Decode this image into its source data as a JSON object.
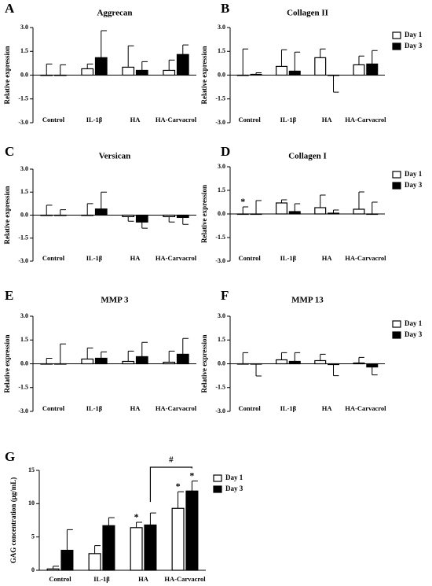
{
  "chart_data": [
    {
      "type": "bar",
      "label": "A",
      "title": "Aggrecan",
      "ylabel": "Relative expression",
      "categories": [
        "Control",
        "IL-1β",
        "HA",
        "HA-Carvacrol"
      ],
      "series": [
        {
          "name": "Day 1",
          "color": "#ffffff",
          "values": [
            0,
            0.4,
            0.5,
            0.3
          ],
          "errors": [
            0.7,
            0.3,
            1.35,
            0.65
          ]
        },
        {
          "name": "Day 3",
          "color": "#000000",
          "values": [
            0,
            1.1,
            0.3,
            1.3
          ],
          "errors": [
            0.65,
            1.7,
            0.55,
            0.6
          ]
        }
      ],
      "ylim": [
        -3,
        3
      ],
      "yticks": [
        {
          "value": 3,
          "label": "3.0"
        },
        {
          "value": 1.5,
          "label": "1.5"
        },
        {
          "value": 0,
          "label": "0.0"
        },
        {
          "value": -1.5,
          "label": "-1.5"
        },
        {
          "value": -3,
          "label": "-3.0"
        }
      ],
      "legend": false
    },
    {
      "type": "bar",
      "label": "B",
      "title": "Collagen II",
      "ylabel": "Relative expression",
      "categories": [
        "Control",
        "IL-1β",
        "HA",
        "HA-Carvacrol"
      ],
      "series": [
        {
          "name": "Day 1",
          "color": "#ffffff",
          "values": [
            0,
            0.55,
            1.1,
            0.65
          ],
          "errors": [
            1.65,
            1.05,
            0.55,
            0.55
          ]
        },
        {
          "name": "Day 3",
          "color": "#000000",
          "values": [
            0.05,
            0.25,
            -0.02,
            0.7
          ],
          "errors": [
            0.1,
            1.2,
            1.05,
            0.85
          ]
        }
      ],
      "ylim": [
        -3,
        3
      ],
      "yticks": [
        {
          "value": 3,
          "label": "3.0"
        },
        {
          "value": 1.5,
          "label": "1.5"
        },
        {
          "value": 0,
          "label": "0.0"
        },
        {
          "value": -1.5,
          "label": "-1.5"
        },
        {
          "value": -3,
          "label": "-3.0"
        }
      ],
      "legend": true
    },
    {
      "type": "bar",
      "label": "C",
      "title": "Versican",
      "ylabel": "Relative expression",
      "categories": [
        "Control",
        "IL-1β",
        "HA",
        "HA-Carvacrol"
      ],
      "series": [
        {
          "name": "Day 1",
          "color": "#ffffff",
          "values": [
            0,
            0,
            -0.1,
            -0.1
          ],
          "errors": [
            0.65,
            0.75,
            0.3,
            0.35
          ]
        },
        {
          "name": "Day 3",
          "color": "#000000",
          "values": [
            0,
            0.4,
            -0.45,
            -0.15
          ],
          "errors": [
            0.35,
            1.1,
            0.4,
            0.45
          ]
        }
      ],
      "ylim": [
        -3,
        3
      ],
      "yticks": [
        {
          "value": 3,
          "label": "3.0"
        },
        {
          "value": 1.5,
          "label": "1.5"
        },
        {
          "value": 0,
          "label": "0.0"
        },
        {
          "value": -1.5,
          "label": "-1.5"
        },
        {
          "value": -3,
          "label": "-3.0"
        }
      ],
      "legend": false
    },
    {
      "type": "bar",
      "label": "D",
      "title": "Collagen I",
      "ylabel": "Relative expression",
      "categories": [
        "Control",
        "IL-1β",
        "HA",
        "HA-Carvacrol"
      ],
      "series": [
        {
          "name": "Day 1",
          "color": "#ffffff",
          "values": [
            0,
            0.7,
            0.4,
            0.3
          ],
          "errors": [
            0.45,
            0.2,
            0.8,
            1.1
          ],
          "markers": [
            "*",
            null,
            null,
            null
          ]
        },
        {
          "name": "Day 3",
          "color": "#000000",
          "values": [
            0,
            0.15,
            0.05,
            0
          ],
          "errors": [
            0.85,
            0.5,
            0.2,
            0.75
          ]
        }
      ],
      "ylim": [
        -3,
        3
      ],
      "yticks": [
        {
          "value": 3,
          "label": "3.0"
        },
        {
          "value": 1.5,
          "label": "1.5"
        },
        {
          "value": 0,
          "label": "0.0"
        },
        {
          "value": -1.5,
          "label": "-1.5"
        },
        {
          "value": -3,
          "label": "-3.0"
        }
      ],
      "legend": true
    },
    {
      "type": "bar",
      "label": "E",
      "title": "MMP 3",
      "ylabel": "Relative expression",
      "categories": [
        "Control",
        "IL-1β",
        "HA",
        "HA-Carvacrol"
      ],
      "series": [
        {
          "name": "Day 1",
          "color": "#ffffff",
          "values": [
            0,
            0.3,
            0.15,
            0.1
          ],
          "errors": [
            0.35,
            0.7,
            0.65,
            0.7
          ]
        },
        {
          "name": "Day 3",
          "color": "#000000",
          "values": [
            0,
            0.35,
            0.45,
            0.6
          ],
          "errors": [
            1.25,
            0.4,
            0.9,
            1.0
          ]
        }
      ],
      "ylim": [
        -3,
        3
      ],
      "yticks": [
        {
          "value": 3,
          "label": "3.0"
        },
        {
          "value": 1.5,
          "label": "1.5"
        },
        {
          "value": 0,
          "label": "0.0"
        },
        {
          "value": -1.5,
          "label": "-1.5"
        },
        {
          "value": -3,
          "label": "-3.0"
        }
      ],
      "legend": false
    },
    {
      "type": "bar",
      "label": "F",
      "title": "MMP 13",
      "ylabel": "Relative expression",
      "categories": [
        "Control",
        "IL-1β",
        "HA",
        "HA-Carvacrol"
      ],
      "series": [
        {
          "name": "Day 1",
          "color": "#ffffff",
          "values": [
            0,
            0.25,
            0.2,
            0.05
          ],
          "errors": [
            0.7,
            0.45,
            0.4,
            0.35
          ]
        },
        {
          "name": "Day 3",
          "color": "#000000",
          "values": [
            -0.02,
            0.15,
            -0.05,
            -0.2
          ],
          "errors": [
            0.75,
            0.55,
            0.7,
            0.5
          ]
        }
      ],
      "ylim": [
        -3,
        3
      ],
      "yticks": [
        {
          "value": 3,
          "label": "3.0"
        },
        {
          "value": 1.5,
          "label": "1.5"
        },
        {
          "value": 0,
          "label": "0.0"
        },
        {
          "value": -1.5,
          "label": "-1.5"
        },
        {
          "value": -3,
          "label": "-3.0"
        }
      ],
      "legend": true
    },
    {
      "type": "bar",
      "label": "G",
      "ylabel": "GAG concentration (μg/mL)",
      "categories": [
        "Control",
        "IL-1β",
        "HA",
        "HA-Carvacrol"
      ],
      "series": [
        {
          "name": "Day 1",
          "color": "#ffffff",
          "values": [
            0.2,
            2.5,
            6.4,
            9.3
          ],
          "errors": [
            0.4,
            1.2,
            0.8,
            2.5
          ],
          "markers": [
            null,
            null,
            "*",
            "*"
          ]
        },
        {
          "name": "Day 3",
          "color": "#000000",
          "values": [
            3.0,
            6.7,
            6.8,
            11.9
          ],
          "errors": [
            3.1,
            1.2,
            1.8,
            1.5
          ],
          "markers": [
            null,
            null,
            null,
            "*"
          ]
        }
      ],
      "bracket": "#",
      "ylim": [
        0,
        15
      ],
      "yticks": [
        0,
        5,
        10,
        15
      ],
      "legend": true
    }
  ]
}
